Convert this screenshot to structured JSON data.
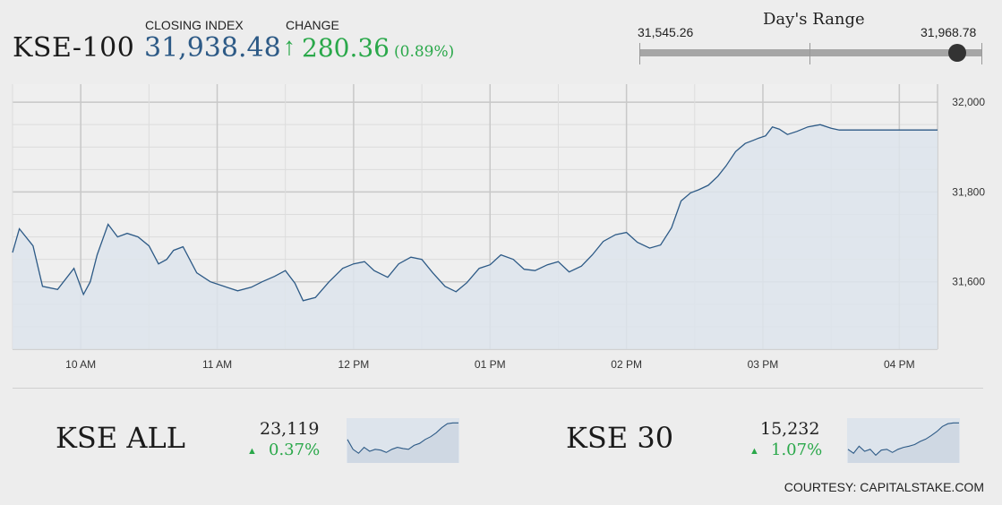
{
  "header": {
    "index_name": "KSE-100",
    "closing_label": "CLOSING INDEX",
    "closing_value": "31,938.48",
    "change_label": "CHANGE",
    "change_arrow": "↑",
    "change_value": "280.36",
    "change_pct": "(0.89%)",
    "up_color": "#2aa84a",
    "value_color": "#2d5a86"
  },
  "days_range": {
    "title": "Day's Range",
    "low_label": "31,545.26",
    "high_label": "31,968.78",
    "low": 31545.26,
    "high": 31968.78,
    "current": 31938.48
  },
  "chart_data": [
    {
      "type": "area",
      "title": "",
      "ylim": [
        31450,
        32040
      ],
      "y_ticks": [
        31600,
        31800,
        32000
      ],
      "y_tick_labels": [
        "31,600",
        "31,800",
        "32,000"
      ],
      "x_tick_labels": [
        "10 AM",
        "11 AM",
        "12 PM",
        "01 PM",
        "02 PM",
        "03 PM",
        "04 PM"
      ],
      "x_range": [
        9.5,
        16.28
      ],
      "grid": true,
      "line_color": "#2d5a86",
      "fill_color": "#dde4ec",
      "series": [
        {
          "x": [
            9.5,
            9.55,
            9.65,
            9.72,
            9.83,
            9.95,
            10.02,
            10.07,
            10.12,
            10.2,
            10.27,
            10.34,
            10.42,
            10.5,
            10.57,
            10.63,
            10.68,
            10.75,
            10.85,
            10.95,
            11.05,
            11.15,
            11.25,
            11.33,
            11.42,
            11.5,
            11.57,
            11.63,
            11.72,
            11.82,
            11.92,
            12.0,
            12.08,
            12.15,
            12.25,
            12.33,
            12.42,
            12.5,
            12.58,
            12.67,
            12.75,
            12.83,
            12.92,
            13.0,
            13.08,
            13.17,
            13.25,
            13.33,
            13.42,
            13.5,
            13.58,
            13.67,
            13.75,
            13.83,
            13.92,
            14.0,
            14.08,
            14.17,
            14.25,
            14.33,
            14.4,
            14.47,
            14.53,
            14.6,
            14.67,
            14.73,
            14.8,
            14.87,
            14.93,
            14.97,
            15.02,
            15.07,
            15.12,
            15.18,
            15.25,
            15.33,
            15.42,
            15.5,
            15.56,
            15.63,
            15.75,
            15.9,
            16.05,
            16.18,
            16.28
          ],
          "y": [
            31665,
            31718,
            31680,
            31590,
            31583,
            31630,
            31572,
            31600,
            31660,
            31728,
            31700,
            31708,
            31700,
            31680,
            31640,
            31650,
            31670,
            31678,
            31620,
            31600,
            31590,
            31580,
            31588,
            31600,
            31612,
            31625,
            31597,
            31558,
            31565,
            31600,
            31630,
            31640,
            31645,
            31625,
            31610,
            31640,
            31655,
            31650,
            31620,
            31590,
            31578,
            31598,
            31630,
            31638,
            31660,
            31650,
            31628,
            31625,
            31638,
            31645,
            31622,
            31635,
            31660,
            31690,
            31705,
            31710,
            31688,
            31675,
            31682,
            31720,
            31780,
            31798,
            31805,
            31815,
            31835,
            31858,
            31890,
            31908,
            31915,
            31920,
            31925,
            31945,
            31940,
            31928,
            31935,
            31945,
            31950,
            31942,
            31938,
            31938,
            31938,
            31938,
            31938,
            31938,
            31938
          ]
        }
      ]
    },
    {
      "type": "area",
      "title": "",
      "series": [
        {
          "y": [
            0.55,
            0.3,
            0.2,
            0.35,
            0.25,
            0.3,
            0.28,
            0.22,
            0.3,
            0.35,
            0.32,
            0.3,
            0.4,
            0.45,
            0.55,
            0.62,
            0.72,
            0.85,
            0.95,
            0.97,
            0.97
          ]
        }
      ]
    },
    {
      "type": "area",
      "title": "",
      "series": [
        {
          "y": [
            0.3,
            0.2,
            0.38,
            0.25,
            0.3,
            0.15,
            0.28,
            0.3,
            0.22,
            0.3,
            0.35,
            0.38,
            0.42,
            0.5,
            0.56,
            0.65,
            0.75,
            0.88,
            0.95,
            0.97,
            0.97
          ]
        }
      ]
    }
  ],
  "sub_indices": [
    {
      "name": "KSE ALL",
      "value": "23,119",
      "arrow": "▲",
      "pct": "0.37%"
    },
    {
      "name": "KSE 30",
      "value": "15,232",
      "arrow": "▲",
      "pct": "1.07%"
    }
  ],
  "footer": {
    "courtesy": "COURTESY: CAPITALSTAKE.COM"
  }
}
